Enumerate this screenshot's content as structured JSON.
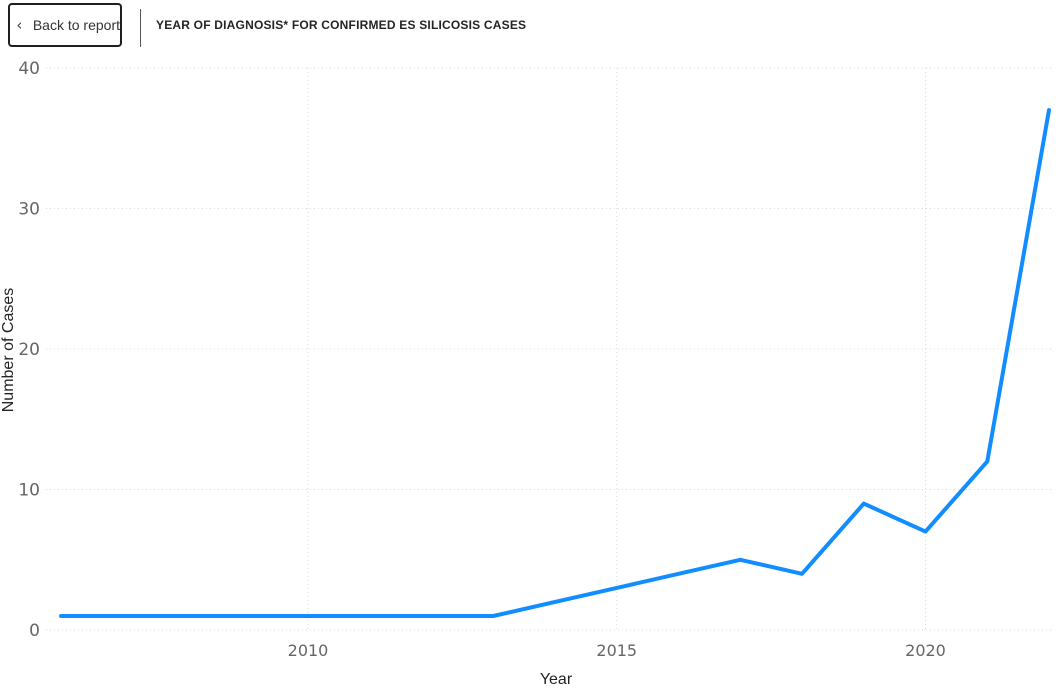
{
  "toolbar": {
    "back_label": "Back to report",
    "back_icon": "chevron-left-icon",
    "title": "YEAR OF DIAGNOSIS* FOR CONFIRMED ES SILICOSIS CASES"
  },
  "chart_data": {
    "type": "line",
    "title": "YEAR OF DIAGNOSIS* FOR CONFIRMED ES SILICOSIS CASES",
    "xlabel": "Year",
    "ylabel": "Number of Cases",
    "x": [
      2006,
      2007,
      2008,
      2009,
      2010,
      2011,
      2012,
      2013,
      2014,
      2015,
      2016,
      2017,
      2018,
      2019,
      2020,
      2021,
      2022
    ],
    "series": [
      {
        "values": [
          1,
          1,
          1,
          1,
          1,
          1,
          1,
          1,
          2,
          3,
          4,
          5,
          4,
          9,
          7,
          12,
          37
        ]
      }
    ],
    "xticks": [
      2010,
      2015,
      2020
    ],
    "yticks": [
      0,
      10,
      20,
      30,
      40
    ],
    "xlim": [
      2006,
      2022
    ],
    "ylim": [
      0,
      40
    ],
    "grid": true,
    "colors": {
      "line": "#118DFF",
      "grid": "#d9d9d9"
    }
  }
}
